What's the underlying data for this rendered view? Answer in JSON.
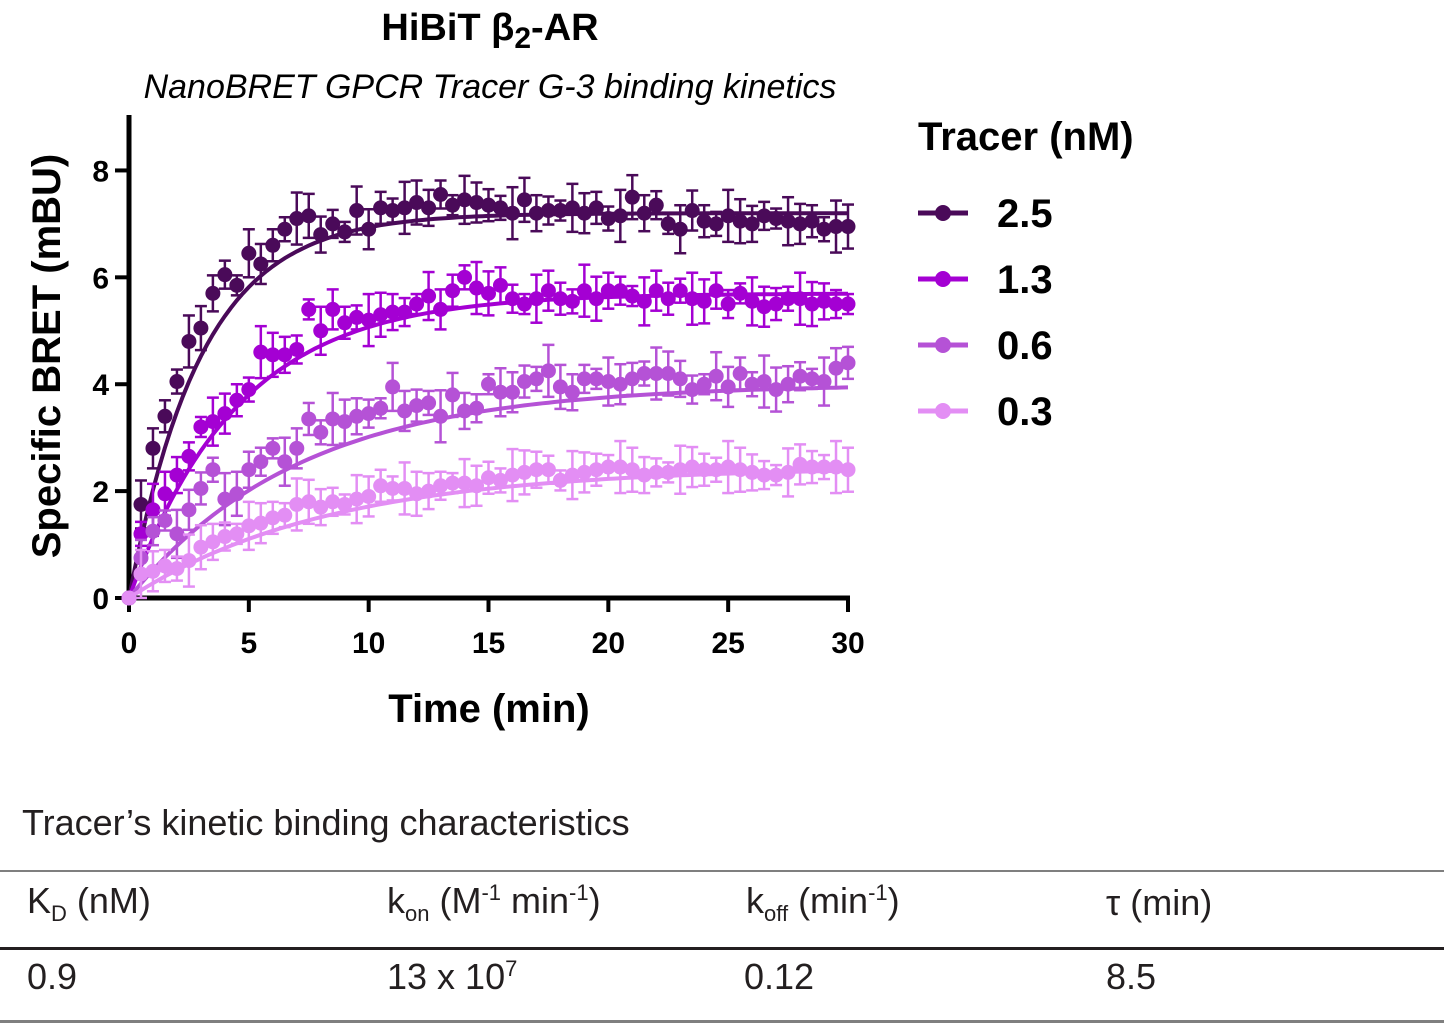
{
  "chart_data": {
    "type": "scatter",
    "title_prefix": "HiBiT β",
    "title_sub": "2",
    "title_suffix": "-AR",
    "subtitle": "NanoBRET GPCR Tracer G-3 binding kinetics",
    "xlabel": "Time (min)",
    "ylabel": "Specific BRET (mBU)",
    "xlim": [
      0,
      30
    ],
    "ylim": [
      0,
      9
    ],
    "xticks": [
      "0",
      "5",
      "10",
      "15",
      "20",
      "25",
      "30"
    ],
    "yticks": [
      "0",
      "2",
      "4",
      "6",
      "8"
    ],
    "grid": false,
    "legend_title": "Tracer (nM)",
    "legend_placement": "right",
    "series": [
      {
        "name": "2.5",
        "color": "#4a0a59",
        "plateau": 7.2,
        "k": 0.33
      },
      {
        "name": "1.3",
        "color": "#a400d3",
        "plateau": 5.7,
        "k": 0.22
      },
      {
        "name": "0.6",
        "color": "#b552d6",
        "plateau": 4.0,
        "k": 0.14
      },
      {
        "name": "0.3",
        "color": "#e38ef4",
        "plateau": 2.45,
        "k": 0.12
      }
    ],
    "x": [
      0,
      0.5,
      1,
      1.5,
      2,
      2.5,
      3,
      3.5,
      4,
      4.5,
      5,
      5.5,
      6,
      6.5,
      7,
      7.5,
      8,
      8.5,
      9,
      9.5,
      10,
      10.5,
      11,
      11.5,
      12,
      12.5,
      13,
      13.5,
      14,
      14.5,
      15,
      15.5,
      16,
      16.5,
      17,
      17.5,
      18,
      18.5,
      19,
      19.5,
      20,
      20.5,
      21,
      21.5,
      22,
      22.5,
      23,
      23.5,
      24,
      24.5,
      25,
      25.5,
      26,
      26.5,
      27,
      27.5,
      28,
      28.5,
      29,
      29.5,
      30
    ],
    "values": [
      [
        0,
        1.75,
        2.8,
        3.4,
        4.05,
        4.8,
        5.05,
        5.7,
        6.05,
        5.85,
        6.45,
        6.25,
        6.6,
        6.9,
        7.1,
        7.15,
        6.8,
        7.0,
        6.85,
        7.25,
        6.9,
        7.3,
        7.25,
        7.3,
        7.4,
        7.3,
        7.55,
        7.35,
        7.45,
        7.4,
        7.35,
        7.3,
        7.2,
        7.45,
        7.2,
        7.25,
        7.25,
        7.3,
        7.2,
        7.3,
        7.1,
        7.15,
        7.5,
        7.2,
        7.35,
        7.0,
        6.9,
        7.25,
        7.05,
        7.0,
        7.15,
        7.05,
        7.0,
        7.15,
        7.1,
        7.05,
        7.0,
        7.05,
        6.9,
        6.95,
        6.95
      ],
      [
        0,
        1.2,
        1.65,
        1.95,
        2.3,
        2.65,
        3.2,
        3.3,
        3.45,
        3.7,
        3.9,
        4.6,
        4.55,
        4.55,
        4.65,
        5.4,
        5.0,
        5.4,
        5.15,
        5.25,
        5.2,
        5.3,
        5.35,
        5.35,
        5.5,
        5.65,
        5.4,
        5.75,
        6.0,
        5.8,
        5.7,
        5.85,
        5.6,
        5.5,
        5.6,
        5.75,
        5.6,
        5.55,
        5.75,
        5.6,
        5.75,
        5.75,
        5.65,
        5.55,
        5.75,
        5.6,
        5.75,
        5.6,
        5.55,
        5.75,
        5.5,
        5.7,
        5.55,
        5.45,
        5.5,
        5.6,
        5.6,
        5.5,
        5.55,
        5.5,
        5.5
      ],
      [
        0,
        0.75,
        1.25,
        1.45,
        1.2,
        1.65,
        2.05,
        2.4,
        1.85,
        1.95,
        2.4,
        2.55,
        2.8,
        2.55,
        2.8,
        3.35,
        3.1,
        3.35,
        3.3,
        3.4,
        3.45,
        3.55,
        3.95,
        3.5,
        3.6,
        3.65,
        3.4,
        3.8,
        3.5,
        3.55,
        4.0,
        3.85,
        3.85,
        4.05,
        4.1,
        4.25,
        3.95,
        3.85,
        4.1,
        4.1,
        4.05,
        4.0,
        4.1,
        4.2,
        4.2,
        4.2,
        4.1,
        3.9,
        4.0,
        4.15,
        3.95,
        4.2,
        4.0,
        4.05,
        3.9,
        4.0,
        4.15,
        4.1,
        4.05,
        4.3,
        4.4
      ],
      [
        0,
        0.45,
        0.5,
        0.6,
        0.55,
        0.7,
        0.95,
        1.05,
        1.15,
        1.2,
        1.35,
        1.4,
        1.5,
        1.55,
        1.75,
        1.8,
        1.7,
        1.8,
        1.75,
        1.85,
        1.9,
        2.1,
        2.05,
        2.05,
        1.95,
        2.0,
        2.1,
        2.15,
        2.15,
        2.1,
        2.25,
        2.2,
        2.3,
        2.35,
        2.4,
        2.4,
        2.2,
        2.3,
        2.35,
        2.4,
        2.45,
        2.45,
        2.4,
        2.3,
        2.35,
        2.35,
        2.4,
        2.45,
        2.4,
        2.4,
        2.45,
        2.4,
        2.35,
        2.3,
        2.3,
        2.35,
        2.5,
        2.45,
        2.45,
        2.45,
        2.4
      ]
    ]
  },
  "table": {
    "caption": "Tracer’s kinetic binding characteristics",
    "headers": {
      "kd_main": "K",
      "kd_sub": "D",
      "kd_unit": " (nM)",
      "kon_main": "k",
      "kon_sub": "on",
      "kon_unit1": " (M",
      "kon_sup1": "-1",
      "kon_unit2": " min",
      "kon_sup2": "-1",
      "kon_unit3": ")",
      "koff_main": "k",
      "koff_sub": "off",
      "koff_unit1": " (min",
      "koff_sup1": "-1",
      "koff_unit2": ")",
      "tau": "τ (min)"
    },
    "row": {
      "kd": "0.9",
      "kon_base": "13 x 10",
      "kon_exp": "7",
      "koff": "0.12",
      "tau": "8.5"
    }
  }
}
